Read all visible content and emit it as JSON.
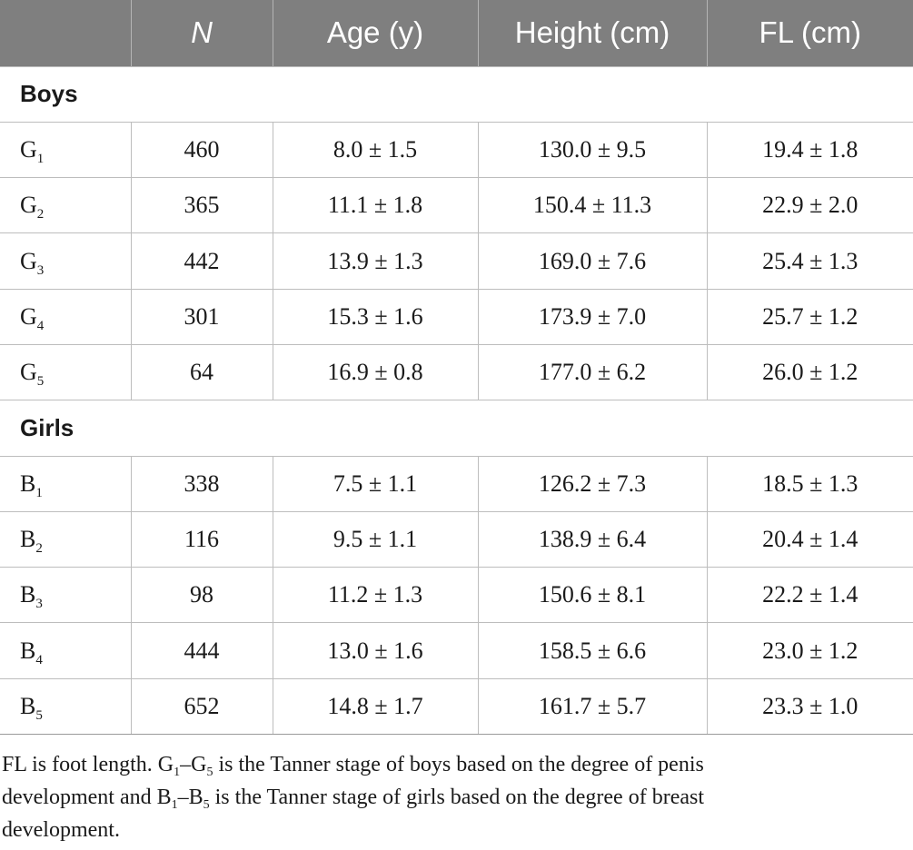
{
  "table": {
    "headers": [
      "",
      "N",
      "Age (y)",
      "Height (cm)",
      "FL (cm)"
    ],
    "sections": [
      {
        "title": "Boys",
        "rows": [
          {
            "stage": {
              "letter": "G",
              "sub": "1"
            },
            "n": "460",
            "age": "8.0 ± 1.5",
            "height": "130.0 ± 9.5",
            "fl": "19.4 ± 1.8"
          },
          {
            "stage": {
              "letter": "G",
              "sub": "2"
            },
            "n": "365",
            "age": "11.1 ± 1.8",
            "height": "150.4 ± 11.3",
            "fl": "22.9 ± 2.0"
          },
          {
            "stage": {
              "letter": "G",
              "sub": "3"
            },
            "n": "442",
            "age": "13.9 ± 1.3",
            "height": "169.0 ± 7.6",
            "fl": "25.4 ± 1.3"
          },
          {
            "stage": {
              "letter": "G",
              "sub": "4"
            },
            "n": "301",
            "age": "15.3 ± 1.6",
            "height": "173.9 ± 7.0",
            "fl": "25.7 ± 1.2"
          },
          {
            "stage": {
              "letter": "G",
              "sub": "5"
            },
            "n": "64",
            "age": "16.9 ± 0.8",
            "height": "177.0 ± 6.2",
            "fl": "26.0 ± 1.2"
          }
        ]
      },
      {
        "title": "Girls",
        "rows": [
          {
            "stage": {
              "letter": "B",
              "sub": "1"
            },
            "n": "338",
            "age": "7.5 ± 1.1",
            "height": "126.2 ± 7.3",
            "fl": "18.5 ± 1.3"
          },
          {
            "stage": {
              "letter": "B",
              "sub": "2"
            },
            "n": "116",
            "age": "9.5 ± 1.1",
            "height": "138.9 ± 6.4",
            "fl": "20.4 ± 1.4"
          },
          {
            "stage": {
              "letter": "B",
              "sub": "3"
            },
            "n": "98",
            "age": "11.2 ± 1.3",
            "height": "150.6 ± 8.1",
            "fl": "22.2 ± 1.4"
          },
          {
            "stage": {
              "letter": "B",
              "sub": "4"
            },
            "n": "444",
            "age": "13.0 ± 1.6",
            "height": "158.5 ± 6.6",
            "fl": "23.0 ± 1.2"
          },
          {
            "stage": {
              "letter": "B",
              "sub": "5"
            },
            "n": "652",
            "age": "14.8 ± 1.7",
            "height": "161.7 ± 5.7",
            "fl": "23.3 ± 1.0"
          }
        ]
      }
    ]
  },
  "footnote": {
    "line1": [
      {
        "t": "FL is foot length. G"
      },
      {
        "t": "1",
        "sub": true
      },
      {
        "t": "–G"
      },
      {
        "t": "5",
        "sub": true
      },
      {
        "t": " is the Tanner stage of boys based on the degree of penis"
      }
    ],
    "line2": [
      {
        "t": "development and B"
      },
      {
        "t": "1",
        "sub": true
      },
      {
        "t": "–B"
      },
      {
        "t": "5",
        "sub": true
      },
      {
        "t": " is the Tanner stage of girls based on the degree of breast"
      }
    ],
    "line3": [
      {
        "t": "development."
      }
    ]
  },
  "colors": {
    "header_bg": "#7f7f7f",
    "header_text": "#ffffff",
    "grid": "#bdbdbd",
    "text": "#1a1a1a"
  }
}
